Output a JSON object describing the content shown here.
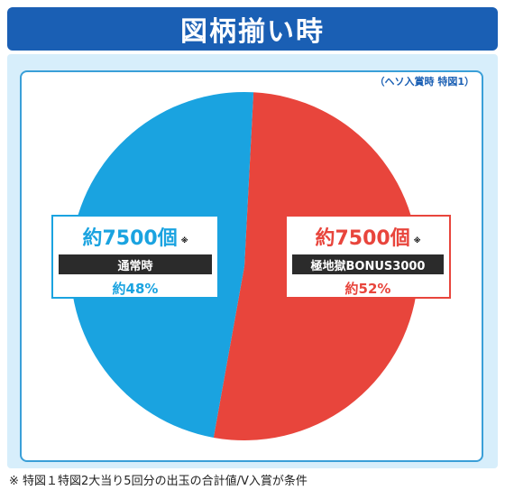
{
  "header": {
    "title": "図柄揃い時"
  },
  "note_top": "（ヘソ入賞時 特図1）",
  "colors": {
    "normal": "#1aa3e0",
    "bonus": "#e8453c",
    "header": "#1a5fb4"
  },
  "chart_data": {
    "type": "pie",
    "slices": [
      {
        "label": "極地獄BONUS3000",
        "percent": 52,
        "count": "約7500個",
        "percent_label": "約52%",
        "color": "#e8453c"
      },
      {
        "label": "通常時",
        "percent": 48,
        "count": "約7500個",
        "percent_label": "約48%",
        "color": "#1aa3e0"
      }
    ]
  },
  "left_box": {
    "count": "約7500個",
    "mark": "※",
    "label": "通常時",
    "percent": "約48%"
  },
  "right_box": {
    "count": "約7500個",
    "mark": "※",
    "label": "極地獄BONUS3000",
    "percent": "約52%"
  },
  "footnote": "※ 特図１特図2大当り5回分の出玉の合計値/V入賞が条件"
}
